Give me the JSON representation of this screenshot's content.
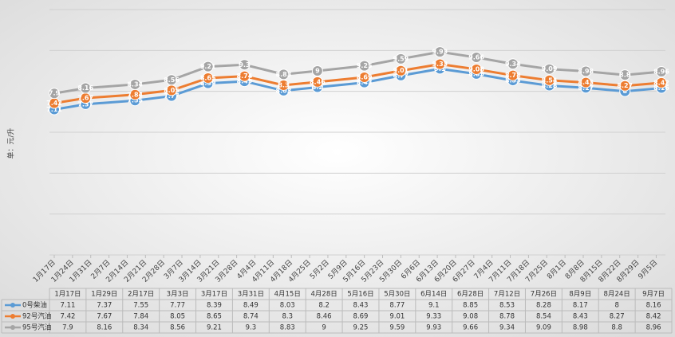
{
  "chart_data": {
    "type": "line",
    "y_label": "单：元/升",
    "categories": [
      "1月17日",
      "1月29日",
      "2月17日",
      "3月3日",
      "3月17日",
      "3月31日",
      "4月15日",
      "4月28日",
      "5月16日",
      "5月30日",
      "6月14日",
      "6月28日",
      "7月12日",
      "7月26日",
      "8月9日",
      "8月24日",
      "9月7日"
    ],
    "xticks": [
      "1月17日",
      "1月24日",
      "1月31日",
      "2月7日",
      "2月14日",
      "2月21日",
      "2月28日",
      "3月7日",
      "3月14日",
      "3月21日",
      "3月28日",
      "4月4日",
      "4月11日",
      "4月18日",
      "4月25日",
      "5月2日",
      "5月9日",
      "5月16日",
      "5月23日",
      "5月30日",
      "6月6日",
      "6月13日",
      "6月20日",
      "6月27日",
      "7月4日",
      "7月11日",
      "7月18日",
      "7月25日",
      "8月1日",
      "8月8日",
      "8月15日",
      "8月22日",
      "8月29日",
      "9月5日"
    ],
    "series": [
      {
        "name": "0号柴油",
        "color": "#5b9bd5",
        "values": [
          7.11,
          7.37,
          7.55,
          7.77,
          8.39,
          8.49,
          8.03,
          8.2,
          8.43,
          8.77,
          9.1,
          8.85,
          8.53,
          8.28,
          8.17,
          8,
          8.16
        ]
      },
      {
        "name": "92号汽油",
        "color": "#ed7d31",
        "values": [
          7.42,
          7.67,
          7.84,
          8.05,
          8.65,
          8.74,
          8.3,
          8.46,
          8.69,
          9.01,
          9.33,
          9.08,
          8.78,
          8.54,
          8.43,
          8.27,
          8.42
        ]
      },
      {
        "name": "95号汽油",
        "color": "#a5a5a5",
        "values": [
          7.9,
          8.16,
          8.34,
          8.56,
          9.21,
          9.3,
          8.83,
          9,
          9.25,
          9.59,
          9.93,
          9.66,
          9.34,
          9.09,
          8.98,
          8.8,
          8.96
        ]
      }
    ],
    "ylim": [
      0,
      12
    ],
    "yticks": [
      0,
      2,
      4,
      6,
      8,
      10,
      12
    ],
    "grid": true,
    "show_ytick_labels": false
  }
}
